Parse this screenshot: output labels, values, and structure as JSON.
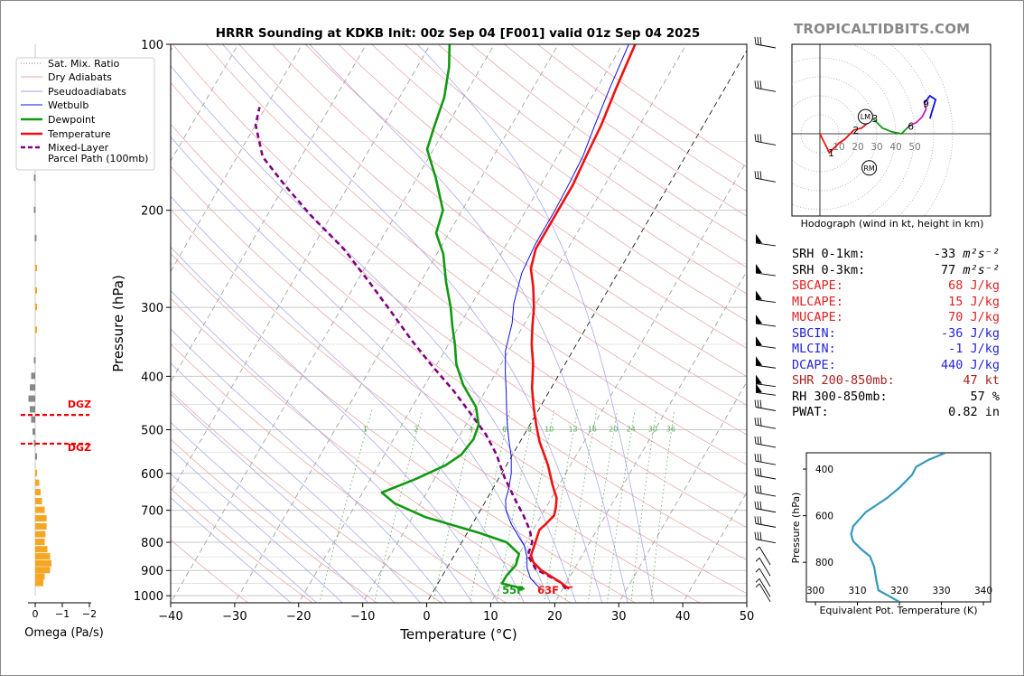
{
  "title": "HRRR Sounding at KDKB Init: 00z Sep 04 [F001] valid 01z Sep 04 2025",
  "site_label": "TROPICALTIDBITS.COM",
  "colors": {
    "temperature": "#ee1111",
    "dewpoint": "#119911",
    "wetbulb": "#1111dd",
    "parcel": "#800080",
    "dry_adiabat": "#e8a0a0",
    "pseudoadiabat": "#a0a0e8",
    "mixing_ratio": "#55aa55",
    "thetae": "#3399bb",
    "dgz": "#ee0000",
    "omega_up": "#f5a623",
    "omega_down": "#888888"
  },
  "legend": {
    "items": [
      {
        "label": "Sat. Mix. Ratio",
        "style": "dotted",
        "color": "#888888"
      },
      {
        "label": "Dry Adiabats",
        "style": "thin",
        "color": "#e8a0a0"
      },
      {
        "label": "Pseudoadiabats",
        "style": "thin",
        "color": "#a0a0e8"
      },
      {
        "label": "Wetbulb",
        "style": "thin",
        "color": "#1111dd"
      },
      {
        "label": "Dewpoint",
        "style": "thick",
        "color": "#119911"
      },
      {
        "label": "Temperature",
        "style": "thick",
        "color": "#ee1111"
      },
      {
        "label": "Mixed-Layer",
        "style": "dashed",
        "color": "#800080"
      },
      {
        "label": "Parcel Path (100mb)",
        "style": "none",
        "color": "#800080"
      }
    ]
  },
  "omega": {
    "xlabel": "Omega (Pa/s)",
    "ticks": [
      "0",
      "−1",
      "−2"
    ],
    "dgz_label": "DGZ",
    "dgz_range": [
      470,
      530
    ]
  },
  "surface_labels": {
    "dewpoint": "55F",
    "temperature": "63F"
  },
  "hodograph": {
    "caption": "Hodograph (wind in kt, height in km)",
    "ring_labels": [
      "10",
      "20",
      "30",
      "40",
      "50"
    ],
    "height_labels": [
      "1",
      "2",
      "3",
      "6",
      "9"
    ],
    "lm_label": "LM",
    "rm_label": "RM"
  },
  "indices": [
    {
      "label": "SRH 0-1km:",
      "value": "-33",
      "unit": " m²s⁻²",
      "color": "#000000"
    },
    {
      "label": "SRH 0-3km:",
      "value": "77",
      "unit": " m²s⁻²",
      "color": "#000000"
    },
    {
      "label": "SBCAPE:",
      "value": "68 J/kg",
      "unit": "",
      "color": "#dd2222"
    },
    {
      "label": "MLCAPE:",
      "value": "15 J/kg",
      "unit": "",
      "color": "#dd2222"
    },
    {
      "label": "MUCAPE:",
      "value": "70 J/kg",
      "unit": "",
      "color": "#dd2222"
    },
    {
      "label": "SBCIN:",
      "value": "-36 J/kg",
      "unit": "",
      "color": "#2222dd"
    },
    {
      "label": "MLCIN:",
      "value": "-1 J/kg",
      "unit": "",
      "color": "#2222dd"
    },
    {
      "label": "DCAPE:",
      "value": "440 J/kg",
      "unit": "",
      "color": "#2222dd"
    },
    {
      "label": "SHR 200-850mb:",
      "value": "47 kt",
      "unit": "",
      "color": "#aa2222"
    },
    {
      "label": "RH 300-850mb:",
      "value": "57 %",
      "unit": "",
      "color": "#000000"
    },
    {
      "label": "PWAT:",
      "value": "0.82 in",
      "unit": "",
      "color": "#000000"
    }
  ],
  "chart_data": [
    {
      "type": "line",
      "title": "HRRR Sounding at KDKB Init: 00z Sep 04 [F001] valid 01z Sep 04 2025",
      "xlabel": "Temperature (°C)",
      "ylabel": "Pressure (hPa)",
      "xlim": [
        -40,
        50
      ],
      "ylim": [
        1030,
        100
      ],
      "x_ticks": [
        "−40",
        "−30",
        "−20",
        "−10",
        "0",
        "10",
        "20",
        "30",
        "40",
        "50"
      ],
      "y_ticks": [
        "100",
        "200",
        "300",
        "400",
        "500",
        "600",
        "700",
        "800",
        "900",
        "1000"
      ],
      "y_scale": "log",
      "skew": "skew-T",
      "mixing_ratio_labels": [
        "1",
        "2",
        "4",
        "6",
        "8",
        "10",
        "13",
        "16",
        "20",
        "24",
        "30",
        "36"
      ],
      "series": [
        {
          "name": "Temperature",
          "points": [
            [
              21,
              972
            ],
            [
              19,
              945
            ],
            [
              15,
              900
            ],
            [
              13,
              870
            ],
            [
              12,
              845
            ],
            [
              11.5,
              800
            ],
            [
              11,
              760
            ],
            [
              11.5,
              740
            ],
            [
              12,
              715
            ],
            [
              11.5,
              690
            ],
            [
              10.8,
              665
            ],
            [
              9,
              630
            ],
            [
              6.5,
              580
            ],
            [
              3,
              525
            ],
            [
              1,
              490
            ],
            [
              -1,
              455
            ],
            [
              -3,
              420
            ],
            [
              -5,
              380
            ],
            [
              -7,
              350
            ],
            [
              -8.5,
              325
            ],
            [
              -10,
              300
            ],
            [
              -12,
              275
            ],
            [
              -14,
              255
            ],
            [
              -15,
              235
            ],
            [
              -15,
              215
            ],
            [
              -15,
              200
            ],
            [
              -15,
              180
            ],
            [
              -15.5,
              160
            ],
            [
              -16,
              140
            ],
            [
              -17,
              120
            ],
            [
              -18,
              100
            ]
          ]
        },
        {
          "name": "Dewpoint",
          "points": [
            [
              14,
              972
            ],
            [
              10,
              950
            ],
            [
              10,
              920
            ],
            [
              10.5,
              880
            ],
            [
              10,
              840
            ],
            [
              7,
              800
            ],
            [
              2,
              770
            ],
            [
              -8,
              720
            ],
            [
              -14,
              680
            ],
            [
              -17,
              650
            ],
            [
              -13,
              615
            ],
            [
              -9.5,
              580
            ],
            [
              -8,
              555
            ],
            [
              -7.5,
              520
            ],
            [
              -8,
              490
            ],
            [
              -10,
              455
            ],
            [
              -14,
              415
            ],
            [
              -17,
              380
            ],
            [
              -19,
              350
            ],
            [
              -21,
              325
            ],
            [
              -23,
              300
            ],
            [
              -26,
              270
            ],
            [
              -29,
              240
            ],
            [
              -32,
              220
            ],
            [
              -33,
              200
            ],
            [
              -37,
              175
            ],
            [
              -41,
              155
            ],
            [
              -42,
              140
            ],
            [
              -43,
              125
            ],
            [
              -45,
              110
            ],
            [
              -47,
              100
            ]
          ]
        },
        {
          "name": "Wetbulb",
          "points": [
            [
              16.5,
              972
            ],
            [
              14,
              930
            ],
            [
              12.5,
              890
            ],
            [
              11.5,
              850
            ],
            [
              10,
              810
            ],
            [
              8.3,
              780
            ],
            [
              6,
              740
            ],
            [
              4,
              700
            ],
            [
              3,
              670
            ],
            [
              2.5,
              640
            ],
            [
              1.5,
              600
            ],
            [
              0,
              560
            ],
            [
              -2,
              520
            ],
            [
              -3.5,
              490
            ],
            [
              -5,
              460
            ],
            [
              -6.5,
              430
            ],
            [
              -8.5,
              395
            ],
            [
              -10.5,
              360
            ],
            [
              -12,
              320
            ],
            [
              -13.5,
              295
            ],
            [
              -15,
              260
            ],
            [
              -15.5,
              230
            ],
            [
              -15.5,
              210
            ],
            [
              -15.5,
              200
            ],
            [
              -15.7,
              180
            ],
            [
              -16,
              160
            ],
            [
              -17,
              140
            ],
            [
              -18,
              120
            ],
            [
              -19,
              100
            ]
          ]
        },
        {
          "name": "Mixed-Layer Parcel Path (100mb)",
          "points": [
            [
              20.5,
              972
            ],
            [
              19,
              945
            ],
            [
              14,
              895
            ],
            [
              11.5,
              845
            ],
            [
              11,
              800
            ],
            [
              9.5,
              760
            ],
            [
              7.2,
              715
            ],
            [
              4.5,
              670
            ],
            [
              0.8,
              610
            ],
            [
              -2.5,
              555
            ],
            [
              -6,
              510
            ],
            [
              -10,
              470
            ],
            [
              -15,
              425
            ],
            [
              -21,
              380
            ],
            [
              -26,
              345
            ],
            [
              -32,
              305
            ],
            [
              -38,
              270
            ],
            [
              -45,
              235
            ],
            [
              -53,
              205
            ],
            [
              -60,
              180
            ],
            [
              -66,
              160
            ],
            [
              -70,
              140
            ],
            [
              -71,
              130
            ]
          ]
        }
      ]
    },
    {
      "type": "bar",
      "title": "",
      "xlabel": "Omega (Pa/s)",
      "orientation": "horizontal",
      "xlim": [
        0.2,
        -2.0
      ],
      "series": [
        {
          "name": "",
          "points": [
            [
              0,
              110
            ],
            [
              0,
              130
            ],
            [
              0.1,
              150
            ],
            [
              0.05,
              175
            ],
            [
              0.05,
              200
            ],
            [
              0.02,
              225
            ],
            [
              -0.02,
              255
            ],
            [
              -0.02,
              280
            ],
            [
              -0.02,
              300
            ],
            [
              -0.02,
              330
            ],
            [
              0.05,
              375
            ],
            [
              0.15,
              400
            ],
            [
              0.2,
              420
            ],
            [
              0.25,
              440
            ],
            [
              0.2,
              460
            ],
            [
              0.15,
              480
            ],
            [
              0.1,
              505
            ],
            [
              0.05,
              530
            ],
            [
              0,
              560
            ],
            [
              -0.07,
              600
            ],
            [
              -0.15,
              625
            ],
            [
              -0.2,
              650
            ],
            [
              -0.25,
              675
            ],
            [
              -0.35,
              700
            ],
            [
              -0.42,
              725
            ],
            [
              -0.42,
              750
            ],
            [
              -0.38,
              775
            ],
            [
              -0.35,
              800
            ],
            [
              -0.45,
              825
            ],
            [
              -0.55,
              850
            ],
            [
              -0.6,
              875
            ],
            [
              -0.55,
              900
            ],
            [
              -0.35,
              925
            ],
            [
              -0.3,
              950
            ]
          ]
        }
      ]
    },
    {
      "type": "line",
      "title": "",
      "xlabel": "Equivalent Pot. Temperature (K)",
      "ylabel": "Pressure (hPa)",
      "xlim": [
        300,
        340
      ],
      "ylim": [
        970,
        330
      ],
      "x_ticks": [
        "300",
        "310",
        "320",
        "330",
        "340"
      ],
      "y_ticks": [
        "400",
        "600",
        "800"
      ],
      "series": [
        {
          "name": "",
          "points": [
            [
              331,
              330
            ],
            [
              327,
              360
            ],
            [
              324,
              390
            ],
            [
              323,
              425
            ],
            [
              320,
              480
            ],
            [
              317,
              525
            ],
            [
              312,
              585
            ],
            [
              309,
              645
            ],
            [
              308.5,
              680
            ],
            [
              309,
              710
            ],
            [
              311,
              745
            ],
            [
              313,
              775
            ],
            [
              314,
              820
            ],
            [
              314.5,
              875
            ],
            [
              315,
              920
            ],
            [
              318,
              950
            ],
            [
              320,
              970
            ]
          ]
        }
      ]
    },
    {
      "type": "line",
      "title": "",
      "xlabel": "",
      "ylabel": "",
      "xlim": [
        -15,
        60
      ],
      "ylim": [
        -30,
        35
      ],
      "series": [
        {
          "name": "",
          "points": [
            [
              0,
              0
            ],
            [
              5,
              -10
            ],
            [
              10,
              -5
            ],
            [
              13,
              -3
            ],
            [
              18,
              2
            ],
            [
              22,
              3
            ],
            [
              28,
              8
            ]
          ]
        },
        {
          "name": "",
          "points": [
            [
              28,
              8
            ],
            [
              33,
              3
            ],
            [
              38,
              1
            ],
            [
              43,
              0
            ],
            [
              45,
              2
            ],
            [
              47,
              4
            ]
          ]
        },
        {
          "name": "",
          "points": [
            [
              47,
              4
            ],
            [
              51,
              6
            ],
            [
              54,
              9
            ],
            [
              56,
              13
            ],
            [
              55,
              16
            ]
          ]
        },
        {
          "name": "",
          "points": [
            [
              55,
              16
            ],
            [
              58,
              20
            ],
            [
              61,
              18
            ],
            [
              58,
              8
            ]
          ]
        }
      ],
      "markers": {
        "LM": [
          24,
          9
        ],
        "RM": [
          26,
          -18
        ]
      }
    }
  ]
}
